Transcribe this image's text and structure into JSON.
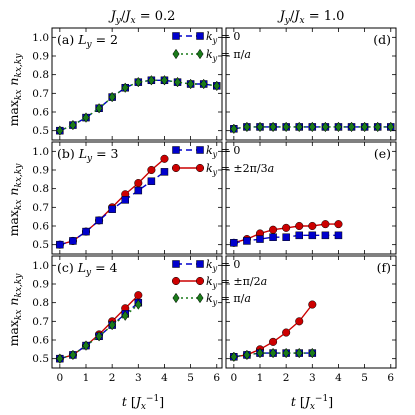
{
  "chart_data": {
    "type": "line",
    "column_titles": [
      "J_y/J_x = 0.2",
      "J_y/J_x = 1.0"
    ],
    "ylabel": "max_{k_x} n_{k_x,k_y}",
    "xlabel": "t [J_x^{-1}]",
    "xlim": [
      -0.3,
      6.2
    ],
    "ylim": [
      0.45,
      1.05
    ],
    "xticks": [
      0,
      1,
      2,
      3,
      4,
      5,
      6
    ],
    "yticks": [
      0.5,
      0.6,
      0.7,
      0.8,
      0.9,
      1.0
    ],
    "series_styles": {
      "ky0": {
        "color": "#0000cc",
        "marker": "square",
        "dash": "6,4"
      },
      "kyh": {
        "color": "#cc0000",
        "marker": "circle",
        "dash": ""
      },
      "kypi": {
        "color": "#1a7a1a",
        "marker": "diamond",
        "dash": "2,3"
      }
    },
    "panels": [
      {
        "id": "a",
        "row": 0,
        "col": 0,
        "label": "(a) L_y = 2",
        "legend": [
          "ky0",
          "kypi"
        ],
        "series": [
          {
            "style": "ky0",
            "x": [
              0,
              0.5,
              1,
              1.5,
              2,
              2.5,
              3,
              3.5,
              4,
              4.5,
              5,
              5.5,
              6
            ],
            "y": [
              0.5,
              0.53,
              0.57,
              0.62,
              0.68,
              0.73,
              0.76,
              0.77,
              0.77,
              0.76,
              0.75,
              0.75,
              0.74
            ]
          },
          {
            "style": "kypi",
            "x": [
              0,
              0.5,
              1,
              1.5,
              2,
              2.5,
              3,
              3.5,
              4,
              4.5,
              5,
              5.5,
              6
            ],
            "y": [
              0.5,
              0.53,
              0.57,
              0.62,
              0.68,
              0.73,
              0.76,
              0.77,
              0.77,
              0.76,
              0.75,
              0.75,
              0.74
            ]
          }
        ]
      },
      {
        "id": "d",
        "row": 0,
        "col": 1,
        "label": "(d)",
        "legend": [],
        "series": [
          {
            "style": "ky0",
            "x": [
              0,
              0.5,
              1,
              1.5,
              2,
              2.5,
              3,
              3.5,
              4,
              4.5,
              5,
              5.5,
              6
            ],
            "y": [
              0.51,
              0.52,
              0.52,
              0.52,
              0.52,
              0.52,
              0.52,
              0.52,
              0.52,
              0.52,
              0.52,
              0.52,
              0.52
            ]
          },
          {
            "style": "kypi",
            "x": [
              0,
              0.5,
              1,
              1.5,
              2,
              2.5,
              3,
              3.5,
              4,
              4.5,
              5,
              5.5,
              6
            ],
            "y": [
              0.51,
              0.52,
              0.52,
              0.52,
              0.52,
              0.52,
              0.52,
              0.52,
              0.52,
              0.52,
              0.52,
              0.52,
              0.52
            ]
          }
        ]
      },
      {
        "id": "b",
        "row": 1,
        "col": 0,
        "label": "(b) L_y = 3",
        "legend": [
          "ky0",
          "kyh"
        ],
        "series": [
          {
            "style": "kyh",
            "x": [
              0,
              0.5,
              1,
              1.5,
              2,
              2.5,
              3,
              3.5,
              4
            ],
            "y": [
              0.5,
              0.52,
              0.57,
              0.63,
              0.7,
              0.77,
              0.83,
              0.9,
              0.96
            ]
          },
          {
            "style": "ky0",
            "x": [
              0,
              0.5,
              1,
              1.5,
              2,
              2.5,
              3,
              3.5,
              4
            ],
            "y": [
              0.5,
              0.52,
              0.57,
              0.63,
              0.69,
              0.74,
              0.79,
              0.84,
              0.89
            ]
          }
        ]
      },
      {
        "id": "e",
        "row": 1,
        "col": 1,
        "label": "(e)",
        "legend": [],
        "series": [
          {
            "style": "kyh",
            "x": [
              0,
              0.5,
              1,
              1.5,
              2,
              2.5,
              3,
              3.5,
              4
            ],
            "y": [
              0.51,
              0.53,
              0.56,
              0.58,
              0.59,
              0.6,
              0.6,
              0.61,
              0.61
            ]
          },
          {
            "style": "ky0",
            "x": [
              0,
              0.5,
              1,
              1.5,
              2,
              2.5,
              3,
              3.5,
              4
            ],
            "y": [
              0.51,
              0.52,
              0.53,
              0.54,
              0.54,
              0.55,
              0.55,
              0.55,
              0.55
            ]
          }
        ]
      },
      {
        "id": "c",
        "row": 2,
        "col": 0,
        "label": "(c) L_y = 4",
        "legend": [
          "ky0",
          "kyh",
          "kypi"
        ],
        "series": [
          {
            "style": "kyh",
            "x": [
              0,
              0.5,
              1,
              1.5,
              2,
              2.5,
              3
            ],
            "y": [
              0.5,
              0.52,
              0.57,
              0.63,
              0.7,
              0.77,
              0.84
            ]
          },
          {
            "style": "ky0",
            "x": [
              0,
              0.5,
              1,
              1.5,
              2,
              2.5,
              3
            ],
            "y": [
              0.5,
              0.52,
              0.57,
              0.62,
              0.68,
              0.74,
              0.8
            ]
          },
          {
            "style": "kypi",
            "x": [
              0,
              0.5,
              1,
              1.5,
              2,
              2.5,
              3
            ],
            "y": [
              0.5,
              0.52,
              0.57,
              0.62,
              0.68,
              0.73,
              0.79
            ]
          }
        ]
      },
      {
        "id": "f",
        "row": 2,
        "col": 1,
        "label": "(f)",
        "legend": [],
        "series": [
          {
            "style": "kyh",
            "x": [
              0,
              0.5,
              1,
              1.5,
              2,
              2.5,
              3
            ],
            "y": [
              0.51,
              0.52,
              0.55,
              0.59,
              0.64,
              0.7,
              0.79
            ]
          },
          {
            "style": "ky0",
            "x": [
              0,
              0.5,
              1,
              1.5,
              2,
              2.5,
              3
            ],
            "y": [
              0.51,
              0.52,
              0.53,
              0.53,
              0.53,
              0.53,
              0.53
            ]
          },
          {
            "style": "kypi",
            "x": [
              0,
              0.5,
              1,
              1.5,
              2,
              2.5,
              3
            ],
            "y": [
              0.51,
              0.52,
              0.53,
              0.53,
              0.53,
              0.53,
              0.53
            ]
          }
        ]
      }
    ],
    "legend_text": {
      "ky0": "k_y = 0",
      "kypi": "k_y = π/a",
      "kyh_b": "k_y = ±2π/3a",
      "kyh_c": "k_y = ±π/2a"
    }
  }
}
